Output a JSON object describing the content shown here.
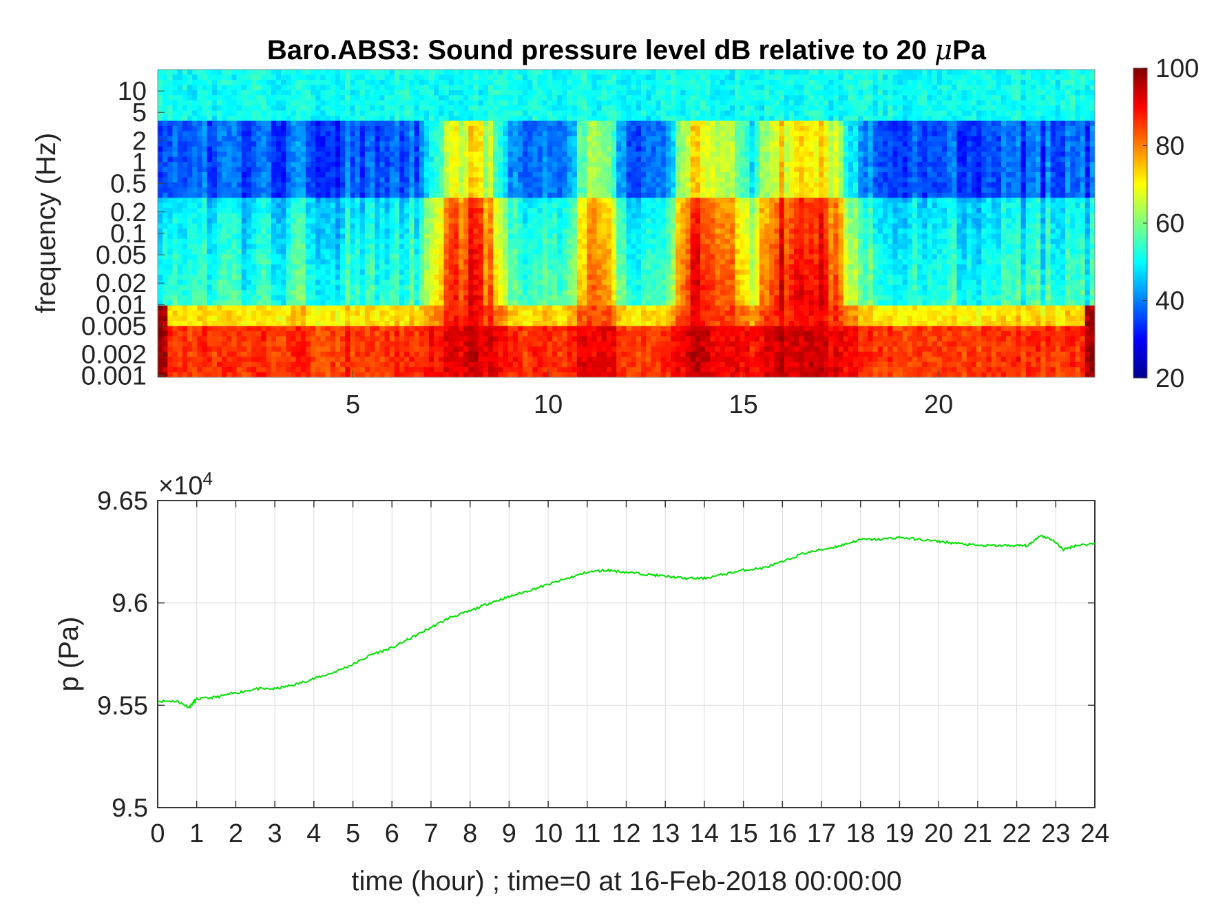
{
  "chart_data": [
    {
      "type": "heatmap",
      "title": "Baro.ABS3: Sound pressure level dB relative to 20 μPa",
      "title_prefix": "Baro.ABS3: Sound pressure level dB relative to 20 ",
      "title_mu": "μ",
      "title_suffix": "Pa",
      "xlabel": "",
      "ylabel": "frequency (Hz)",
      "xlim": [
        0,
        24
      ],
      "x_ticks": [
        5,
        10,
        15,
        20
      ],
      "y_scale": "log",
      "ylim": [
        0.00095,
        20
      ],
      "y_ticks": [
        "10",
        "5",
        "2",
        "1",
        "0.5",
        "0.2",
        "0.1",
        "0.05",
        "0.02",
        "0.01",
        "0.005",
        "0.002",
        "0.001"
      ],
      "y_tick_values": [
        10,
        5,
        2,
        1,
        0.5,
        0.2,
        0.1,
        0.05,
        0.02,
        0.01,
        0.005,
        0.002,
        0.001
      ],
      "colormap": "jet",
      "colorbar": {
        "range": [
          20,
          100
        ],
        "ticks": [
          "100",
          "80",
          "60",
          "40",
          "20"
        ],
        "tick_values": [
          100,
          80,
          60,
          40,
          20
        ]
      },
      "high_energy_hours": [
        7.5,
        8.3,
        11.2,
        13.7,
        14.5,
        15.8,
        16.5,
        17.2
      ]
    },
    {
      "type": "line",
      "title": "",
      "xlabel": "time (hour) ; time=0 at 16-Feb-2018 00:00:00",
      "ylabel": "p (Pa)",
      "exponent_label": "×10",
      "exponent_power": "4",
      "xlim": [
        0,
        24
      ],
      "ylim": [
        9.5,
        9.65
      ],
      "x_ticks": [
        "0",
        "1",
        "2",
        "3",
        "4",
        "5",
        "6",
        "7",
        "8",
        "9",
        "10",
        "11",
        "12",
        "13",
        "14",
        "15",
        "16",
        "17",
        "18",
        "19",
        "20",
        "21",
        "22",
        "23",
        "24"
      ],
      "y_ticks": [
        "9.65",
        "9.6",
        "9.55",
        "9.5"
      ],
      "y_tick_values": [
        9.65,
        9.6,
        9.55,
        9.5
      ],
      "grid": true,
      "series": [
        {
          "color": "#00e000",
          "x": [
            0,
            0.5,
            0.8,
            1,
            1.5,
            2,
            2.5,
            3,
            3.5,
            4,
            4.5,
            5,
            5.5,
            6,
            6.5,
            7,
            7.5,
            8,
            8.5,
            9,
            9.5,
            10,
            10.5,
            11,
            11.5,
            12,
            12.5,
            13,
            13.5,
            14,
            14.5,
            15,
            15.5,
            16,
            16.5,
            17,
            17.5,
            18,
            18.5,
            19,
            19.5,
            20,
            20.5,
            21,
            21.5,
            22,
            22.3,
            22.6,
            22.9,
            23.2,
            23.5,
            24
          ],
          "y": [
            9.552,
            9.552,
            9.549,
            9.553,
            9.554,
            9.556,
            9.558,
            9.558,
            9.56,
            9.563,
            9.566,
            9.57,
            9.575,
            9.578,
            9.583,
            9.588,
            9.593,
            9.596,
            9.6,
            9.603,
            9.606,
            9.609,
            9.612,
            9.615,
            9.616,
            9.615,
            9.614,
            9.613,
            9.612,
            9.612,
            9.614,
            9.616,
            9.617,
            9.62,
            9.624,
            9.626,
            9.628,
            9.631,
            9.631,
            9.632,
            9.631,
            9.63,
            9.629,
            9.628,
            9.628,
            9.628,
            9.628,
            9.633,
            9.631,
            9.626,
            9.628,
            9.629
          ]
        }
      ]
    }
  ]
}
